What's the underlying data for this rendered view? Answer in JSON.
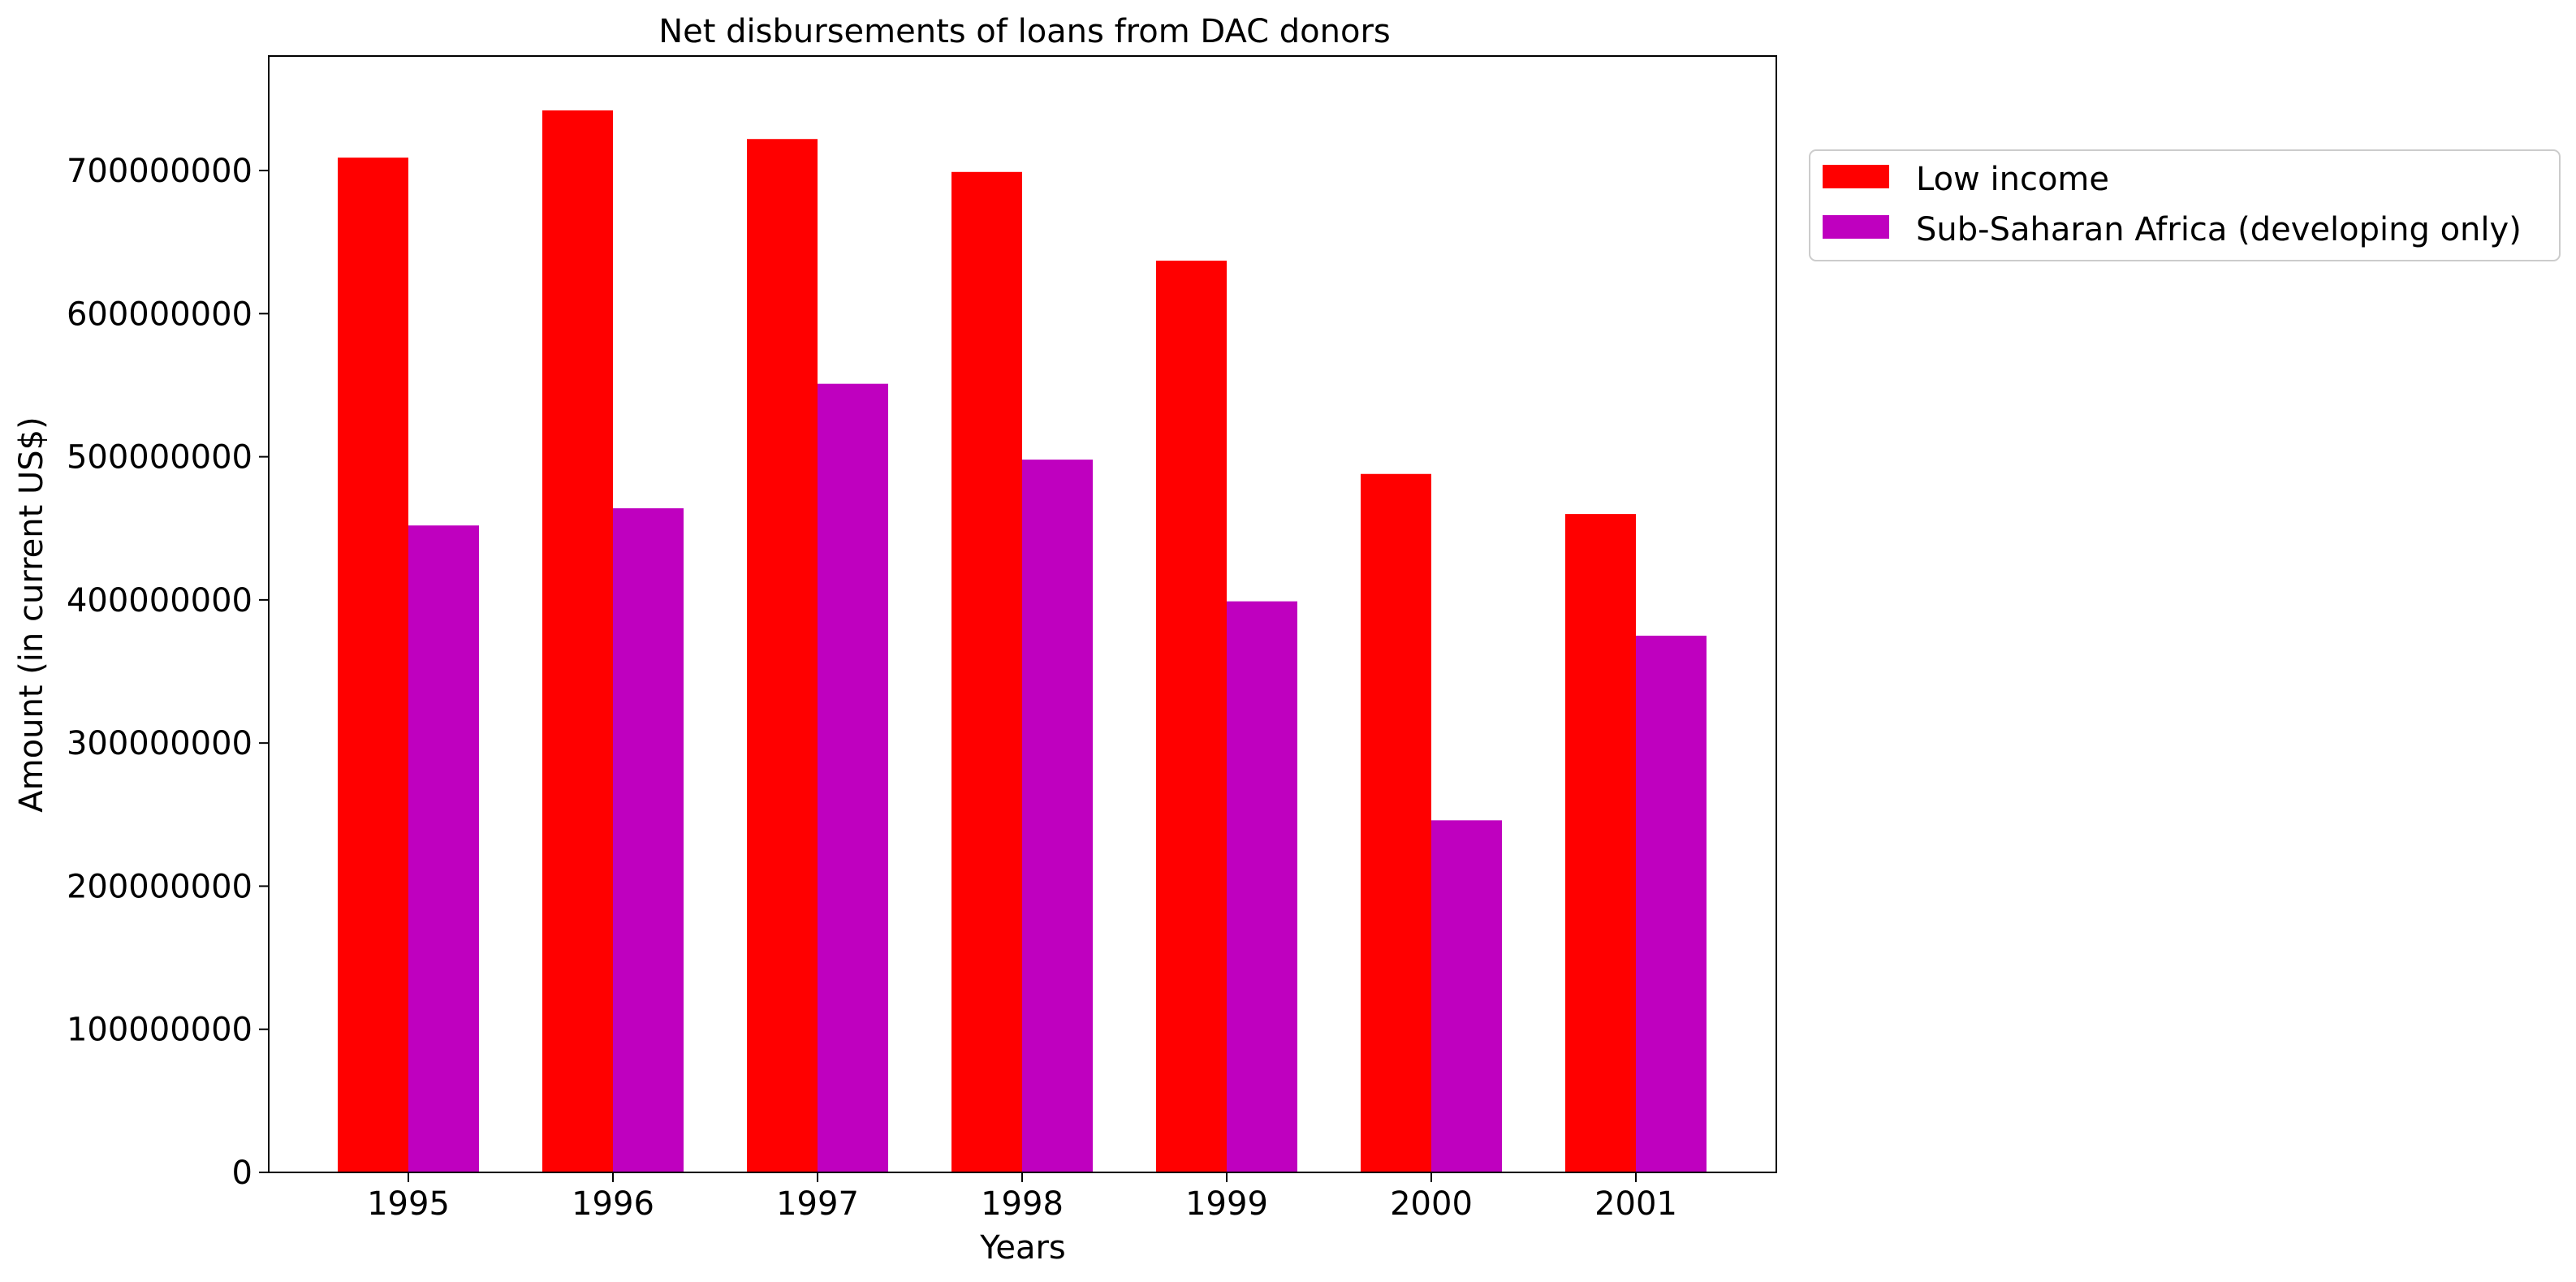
{
  "chart_data": {
    "type": "bar",
    "title": "Net disbursements of loans from DAC donors",
    "xlabel": "Years",
    "ylabel": "Amount (in current US$)",
    "categories": [
      "1995",
      "1996",
      "1997",
      "1998",
      "1999",
      "2000",
      "2001"
    ],
    "series": [
      {
        "name": "Low income",
        "color": "#ff0000",
        "values": [
          709000000,
          742000000,
          722000000,
          699000000,
          637000000,
          488000000,
          460000000
        ]
      },
      {
        "name": "Sub-Saharan Africa (developing only)",
        "color": "#bf00bf",
        "values": [
          452000000,
          464000000,
          551000000,
          498000000,
          399000000,
          246000000,
          375000000
        ]
      }
    ],
    "ylim": [
      0,
      780000000
    ],
    "yticks": [
      0,
      100000000,
      200000000,
      300000000,
      400000000,
      500000000,
      600000000,
      700000000
    ],
    "ytick_labels": [
      "0",
      "100000000",
      "200000000",
      "300000000",
      "400000000",
      "500000000",
      "600000000",
      "700000000"
    ],
    "grid": false,
    "legend_position": "outside-top-right"
  }
}
